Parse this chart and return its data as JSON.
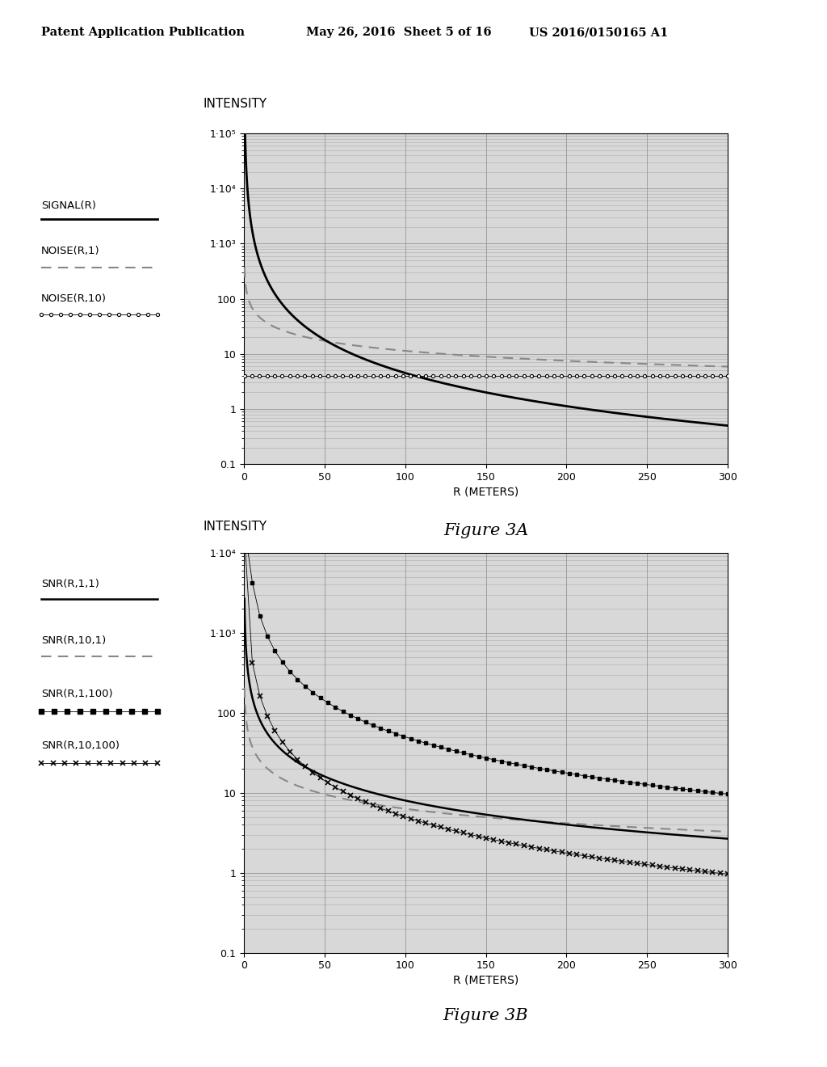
{
  "header_left": "Patent Application Publication",
  "header_mid": "May 26, 2016  Sheet 5 of 16",
  "header_right": "US 2016/0150165 A1",
  "fig3a_title": "INTENSITY",
  "fig3b_title": "INTENSITY",
  "fig3a_xlabel": "R (METERS)",
  "fig3b_xlabel": "R (METERS)",
  "fig3a_caption": "Figure 3A",
  "fig3b_caption": "Figure 3B",
  "xlim": [
    0,
    300
  ],
  "fig3a_ylim": [
    0.1,
    100000.0
  ],
  "fig3b_ylim": [
    0.1,
    10000.0
  ],
  "xticks": [
    0,
    50,
    100,
    150,
    200,
    250,
    300
  ],
  "yticks_3a": [
    0.1,
    1,
    10,
    100,
    1000,
    10000,
    100000
  ],
  "ytick_labels_3a": [
    "0.1",
    "1",
    "10",
    "100",
    "1·10³",
    "1·10⁴",
    "1·10⁵"
  ],
  "yticks_3b": [
    0.1,
    1,
    10,
    100,
    1000,
    10000
  ],
  "ytick_labels_3b": [
    "0.1",
    "1",
    "10",
    "100",
    "1·10³",
    "1·10⁴"
  ],
  "background_color": "#ffffff",
  "plot_bg_color": "#d8d8d8",
  "grid_color": "#999999"
}
